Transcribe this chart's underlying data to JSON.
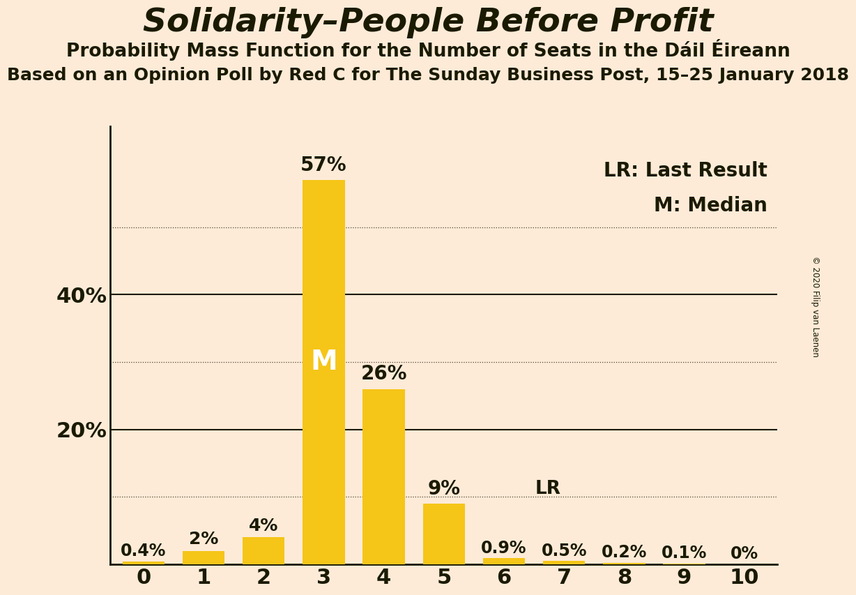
{
  "title": "Solidarity–People Before Profit",
  "subtitle1": "Probability Mass Function for the Number of Seats in the Dáil Éireann",
  "subtitle2": "Based on an Opinion Poll by Red C for The Sunday Business Post, 15–25 January 2018",
  "copyright": "© 2020 Filip van Laenen",
  "categories": [
    0,
    1,
    2,
    3,
    4,
    5,
    6,
    7,
    8,
    9,
    10
  ],
  "values": [
    0.4,
    2.0,
    4.0,
    57.0,
    26.0,
    9.0,
    0.9,
    0.5,
    0.2,
    0.1,
    0.0
  ],
  "labels": [
    "0.4%",
    "2%",
    "4%",
    "57%",
    "26%",
    "9%",
    "0.9%",
    "0.5%",
    "0.2%",
    "0.1%",
    "0%"
  ],
  "bar_color": "#F5C518",
  "background_color": "#FDEBD8",
  "text_color": "#1a1a00",
  "median_bar": 3,
  "lr_bar": 6,
  "ylim": [
    0,
    65
  ],
  "yticks": [
    20,
    40
  ],
  "dotted_gridlines": [
    10,
    30,
    50
  ],
  "solid_gridlines": [
    20,
    40
  ],
  "legend_lr": "LR: Last Result",
  "legend_m": "M: Median"
}
